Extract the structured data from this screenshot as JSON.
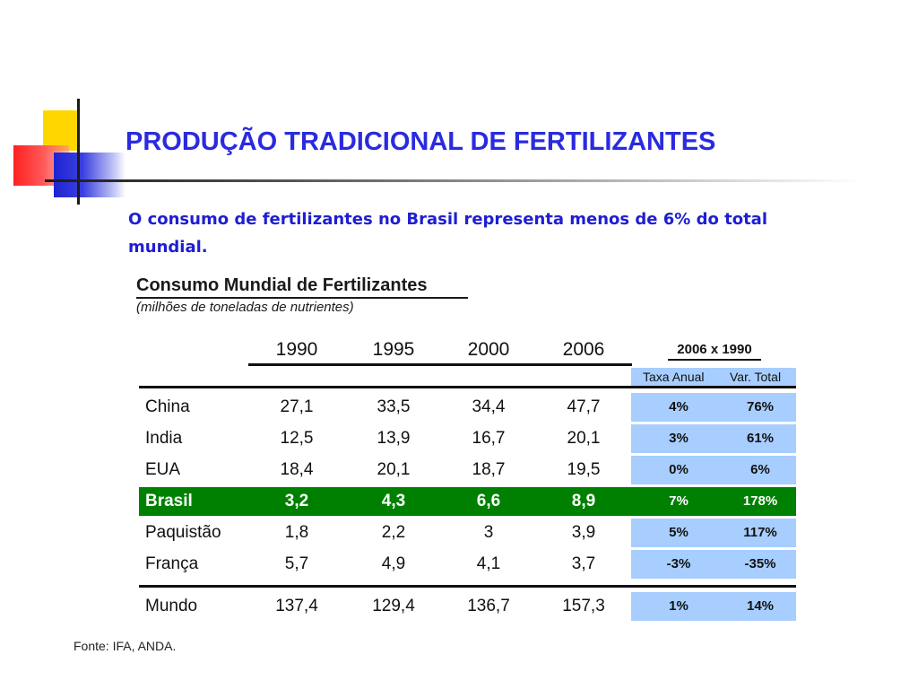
{
  "slide": {
    "title": "PRODUÇÃO TRADICIONAL DE FERTILIZANTES",
    "subtitle": "O consumo de fertilizantes no Brasil representa menos de 6% do total mundial."
  },
  "table": {
    "title": "Consumo Mundial de Fertilizantes",
    "unit": "(milhões de toneladas de nutrientes)",
    "years": [
      "1990",
      "1995",
      "2000",
      "2006"
    ],
    "comparison_header": "2006 x 1990",
    "comparison_subheaders": [
      "Taxa Anual",
      "Var. Total"
    ],
    "rows": [
      {
        "country": "China",
        "values": [
          "27,1",
          "33,5",
          "34,4",
          "47,7"
        ],
        "taxa": "4%",
        "var": "76%"
      },
      {
        "country": "India",
        "values": [
          "12,5",
          "13,9",
          "16,7",
          "20,1"
        ],
        "taxa": "3%",
        "var": "61%"
      },
      {
        "country": "EUA",
        "values": [
          "18,4",
          "20,1",
          "18,7",
          "19,5"
        ],
        "taxa": "0%",
        "var": "6%"
      },
      {
        "country": "Brasil",
        "values": [
          "3,2",
          "4,3",
          "6,6",
          "8,9"
        ],
        "taxa": "7%",
        "var": "178%"
      },
      {
        "country": "Paquistão",
        "values": [
          "1,8",
          "2,2",
          "3",
          "3,9"
        ],
        "taxa": "5%",
        "var": "117%"
      },
      {
        "country": "França",
        "values": [
          "5,7",
          "4,9",
          "4,1",
          "3,7"
        ],
        "taxa": "-3%",
        "var": "-35%"
      }
    ],
    "total": {
      "country": "Mundo",
      "values": [
        "137,4",
        "129,4",
        "136,7",
        "157,3"
      ],
      "taxa": "1%",
      "var": "14%"
    },
    "highlight_color": "#008000",
    "percent_bg_color": "#a7ceff"
  },
  "source": "Fonte: IFA, ANDA.",
  "colors": {
    "title": "#2a2ae0",
    "subtitle": "#1e1ed2",
    "accent_yellow": "#ffd700",
    "accent_red": "#ff2020",
    "accent_blue": "#1e23d2"
  }
}
